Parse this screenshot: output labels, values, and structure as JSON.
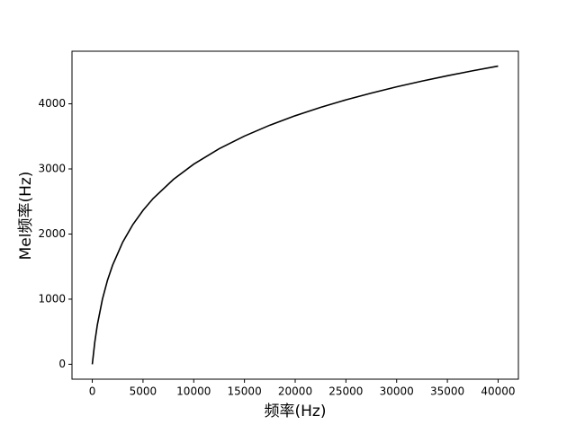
{
  "chart_data": {
    "type": "line",
    "xlabel": "频率(Hz)",
    "ylabel": "Mel频率(Hz)",
    "x": [
      0,
      250,
      500,
      1000,
      1500,
      2000,
      3000,
      4000,
      5000,
      6000,
      8000,
      10000,
      12500,
      15000,
      17500,
      20000,
      22500,
      25000,
      27500,
      30000,
      32500,
      35000,
      37500,
      40000
    ],
    "series": [
      {
        "color": "#000000",
        "values": [
          0,
          344,
          607,
          1000,
          1291,
          1521,
          1876,
          2146,
          2364,
          2546,
          2840,
          3073,
          3310,
          3505,
          3672,
          3817,
          3946,
          4061,
          4165,
          4261,
          4349,
          4431,
          4508,
          4579
        ]
      }
    ],
    "xlim": [
      -2000,
      42000
    ],
    "ylim": [
      -229,
      4808
    ],
    "xticks": [
      0,
      5000,
      10000,
      15000,
      20000,
      25000,
      30000,
      35000,
      40000
    ],
    "yticks": [
      0,
      1000,
      2000,
      3000,
      4000
    ]
  }
}
